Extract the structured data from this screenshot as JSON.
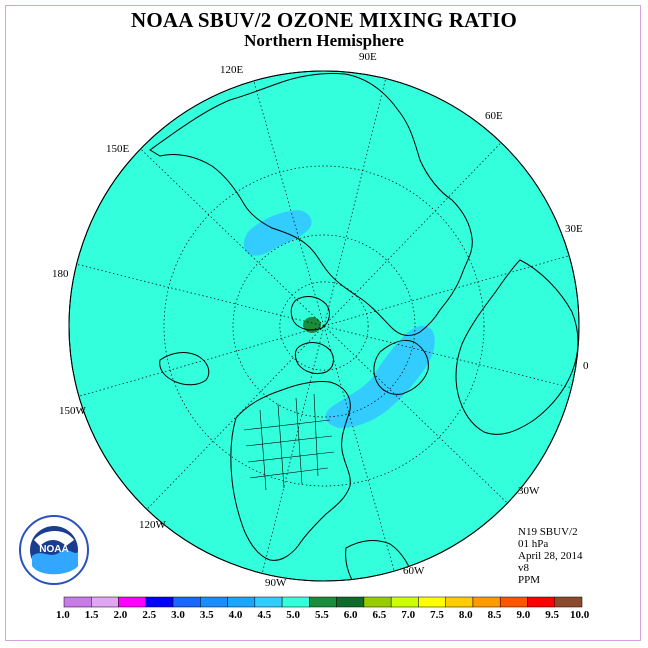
{
  "title": "NOAA SBUV/2 OZONE MIXING RATIO",
  "subtitle": "Northern Hemisphere",
  "longitude_labels": {
    "lon_90e": "90E",
    "lon_60e": "60E",
    "lon_30e": "30E",
    "lon_0": "0",
    "lon_30w": "30W",
    "lon_60w": "60W",
    "lon_90w": "90W",
    "lon_120w": "120W",
    "lon_150w": "150W",
    "lon_180": "180",
    "lon_150e": "150E",
    "lon_120e": "120E"
  },
  "info": {
    "instrument": "N19 SBUV/2",
    "level": "01 hPa",
    "date": "April 28, 2014",
    "version": "v8",
    "units": "PPM"
  },
  "colorbar": {
    "labels": [
      "1.0",
      "1.5",
      "2.0",
      "2.5",
      "3.0",
      "3.5",
      "4.0",
      "4.5",
      "5.0",
      "5.5",
      "6.0",
      "6.5",
      "7.0",
      "7.5",
      "8.0",
      "8.5",
      "9.0",
      "9.5",
      "10.0"
    ],
    "colors": [
      "#c77ce8",
      "#e0a6f2",
      "#ff00ff",
      "#0000ff",
      "#1a66ff",
      "#1a8cff",
      "#1aa6ff",
      "#33ccff",
      "#33ffdd",
      "#1a8c3c",
      "#0f6b2a",
      "#99cc00",
      "#ccff00",
      "#ffff00",
      "#ffcc00",
      "#ff9900",
      "#ff5500",
      "#ff0000",
      "#8b4a2b"
    ]
  },
  "map_colors": {
    "background_field": "#33ffdd",
    "enhanced_region": "#33ccff",
    "maximum_spot": "#1a8c3c"
  },
  "logo_text": "NOAA"
}
